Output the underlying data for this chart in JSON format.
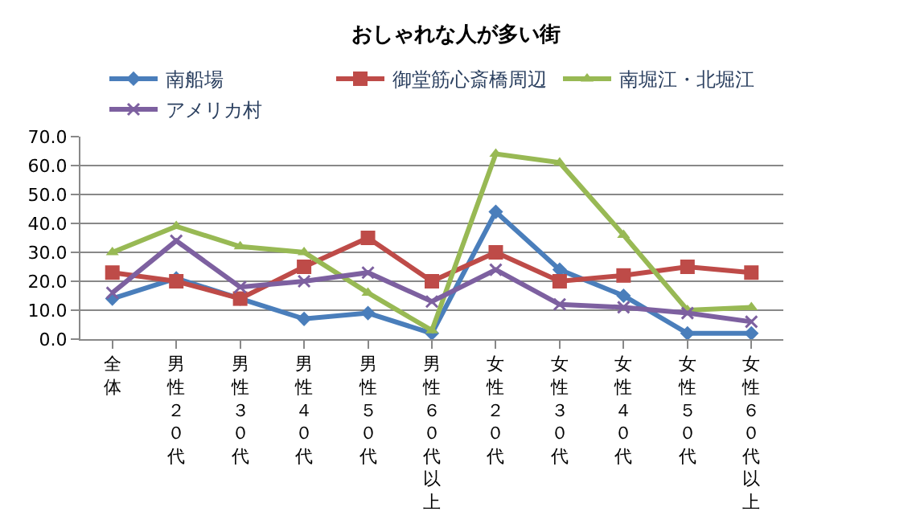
{
  "chart_data": {
    "type": "line",
    "title": "おしゃれな人が多い街",
    "categories": [
      "全体",
      "男性２０代",
      "男性３０代",
      "男性４０代",
      "男性５０代",
      "男性６０代以上",
      "女性２０代",
      "女性３０代",
      "女性４０代",
      "女性５０代",
      "女性６０代以上"
    ],
    "series": [
      {
        "name": "南船場",
        "color": "#4a7ebb",
        "marker": "diamond",
        "values": [
          14,
          21,
          14,
          7,
          9,
          2,
          44,
          24,
          15,
          2,
          2
        ]
      },
      {
        "name": "御堂筋心斎橋周辺",
        "color": "#be4b48",
        "marker": "square",
        "values": [
          23,
          20,
          14,
          25,
          35,
          20,
          30,
          20,
          22,
          25,
          23
        ]
      },
      {
        "name": "南堀江・北堀江",
        "color": "#98b954",
        "marker": "triangle",
        "values": [
          30,
          39,
          32,
          30,
          16,
          3,
          64,
          61,
          36,
          10,
          11
        ]
      },
      {
        "name": "アメリカ村",
        "color": "#7d60a0",
        "marker": "cross",
        "values": [
          16,
          34,
          18,
          20,
          23,
          13,
          24,
          12,
          11,
          9,
          6
        ]
      }
    ],
    "ylim": [
      0,
      70
    ],
    "yticks": [
      {
        "value": 0,
        "label": "0.0"
      },
      {
        "value": 10,
        "label": "10.0"
      },
      {
        "value": 20,
        "label": "20.0"
      },
      {
        "value": 30,
        "label": "30.0"
      },
      {
        "value": 40,
        "label": "40.0"
      },
      {
        "value": 50,
        "label": "50.0"
      },
      {
        "value": 60,
        "label": "60.0"
      },
      {
        "value": 70,
        "label": "70.0"
      }
    ],
    "grid": "y",
    "legend": "top"
  }
}
